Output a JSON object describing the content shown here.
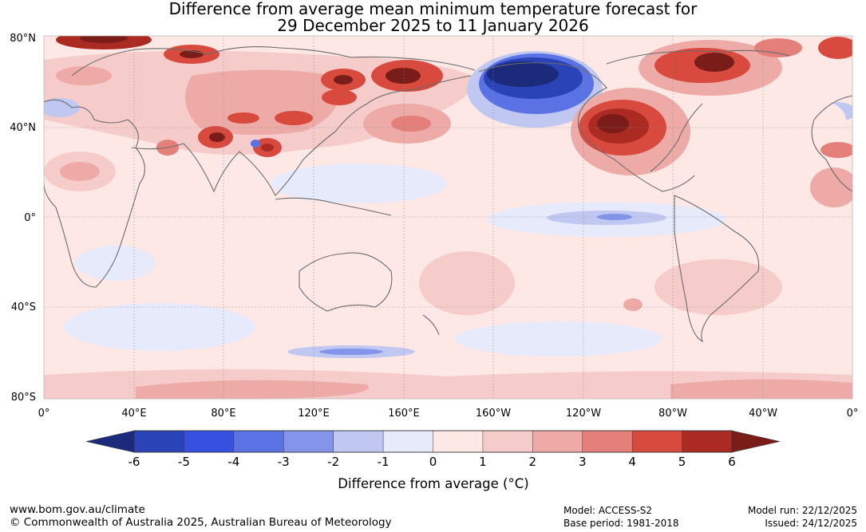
{
  "title": {
    "line1": "Difference from average mean minimum temperature forecast for",
    "line2": "29 December 2025 to 11 January 2026"
  },
  "map": {
    "lat_labels": [
      "80°N",
      "40°N",
      "0°",
      "40°S",
      "80°S"
    ],
    "lon_labels": [
      "0°",
      "40°E",
      "80°E",
      "120°E",
      "160°E",
      "160°W",
      "120°W",
      "80°W",
      "40°W",
      "0°"
    ]
  },
  "colorbar": {
    "label": "Difference from average (°C)",
    "ticks": [
      "-6",
      "-5",
      "-4",
      "-3",
      "-2",
      "-1",
      "0",
      "1",
      "2",
      "3",
      "4",
      "5",
      "6"
    ],
    "colors": [
      "#1c2a7c",
      "#2a44b8",
      "#3750e0",
      "#5b72e4",
      "#8494ea",
      "#c0c8f2",
      "#e6eafa",
      "#fde8e6",
      "#f6cccb",
      "#eeaaa6",
      "#e48079",
      "#d84a3e",
      "#ab2a22",
      "#7a1c18"
    ]
  },
  "footer": {
    "url": "www.bom.gov.au/climate",
    "copyright": "© Commonwealth of Australia 2025, Australian Bureau of Meteorology",
    "model": "Model: ACCESS-S2",
    "base_period": "Base period: 1981-2018",
    "model_run": "Model run: 22/12/2025",
    "issued": "Issued: 24/12/2025"
  }
}
